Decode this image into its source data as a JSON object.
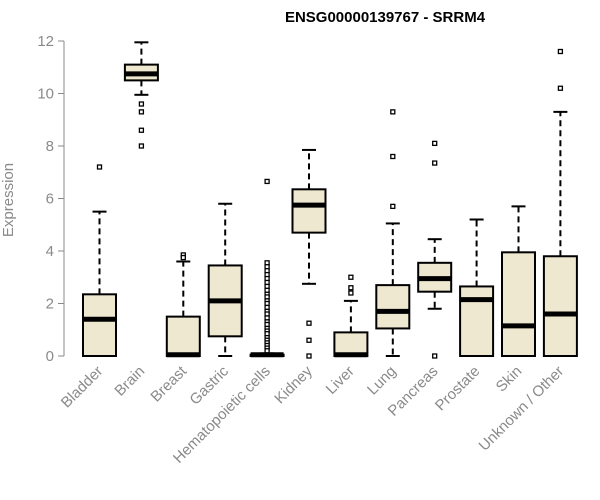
{
  "chart_data": {
    "type": "boxplot",
    "title": "ENSG00000139767 - SRRM4",
    "xlabel": "",
    "ylabel": "Expression",
    "ylim": [
      0,
      12
    ],
    "yticks": [
      "0",
      "2",
      "4",
      "6",
      "8",
      "10",
      "12"
    ],
    "box_fill": "#efe8d0",
    "box_stroke": "#000000",
    "categories": [
      "Bladder",
      "Brain",
      "Breast",
      "Gastric",
      "Hematopoietic cells",
      "Kidney",
      "Liver",
      "Lung",
      "Pancreas",
      "Prostate",
      "Skin",
      "Unknown / Other"
    ],
    "boxes": [
      {
        "label": "Bladder",
        "whisker_low": 0,
        "q1": 0,
        "median": 1.4,
        "q3": 2.35,
        "whisker_high": 5.5,
        "outliers": [
          7.2
        ]
      },
      {
        "label": "Brain",
        "whisker_low": 9.95,
        "q1": 10.5,
        "median": 10.75,
        "q3": 11.1,
        "whisker_high": 11.95,
        "outliers": [
          9.6,
          9.3,
          8.6,
          8.0
        ]
      },
      {
        "label": "Breast",
        "whisker_low": 0,
        "q1": 0,
        "median": 0.05,
        "q3": 1.5,
        "whisker_high": 3.6,
        "outliers": [
          3.85,
          3.75
        ]
      },
      {
        "label": "Gastric",
        "whisker_low": 0,
        "q1": 0.75,
        "median": 2.1,
        "q3": 3.45,
        "whisker_high": 5.8,
        "outliers": []
      },
      {
        "label": "Hematopoietic cells",
        "whisker_low": 0,
        "q1": 0,
        "median": 0.05,
        "q3": 0.05,
        "whisker_high": 0.1,
        "outliers": [
          6.65,
          3.55,
          3.4,
          3.25,
          3.1,
          2.95,
          2.8,
          2.65,
          2.5,
          2.35,
          2.25,
          2.1,
          2.0,
          1.85,
          1.7,
          1.6,
          1.45,
          1.3,
          1.2,
          1.05,
          0.95,
          0.85,
          0.7,
          0.6,
          0.5,
          0.4,
          0.3,
          0.2
        ]
      },
      {
        "label": "Kidney",
        "whisker_low": 2.75,
        "q1": 4.7,
        "median": 5.75,
        "q3": 6.35,
        "whisker_high": 7.85,
        "outliers": [
          1.25,
          0.6,
          0.0
        ]
      },
      {
        "label": "Liver",
        "whisker_low": 0,
        "q1": 0,
        "median": 0.05,
        "q3": 0.9,
        "whisker_high": 2.1,
        "outliers": [
          3.0,
          2.6,
          2.4
        ]
      },
      {
        "label": "Lung",
        "whisker_low": 0,
        "q1": 1.05,
        "median": 1.7,
        "q3": 2.7,
        "whisker_high": 5.05,
        "outliers": [
          9.3,
          7.6,
          5.7
        ]
      },
      {
        "label": "Pancreas",
        "whisker_low": 1.8,
        "q1": 2.45,
        "median": 2.95,
        "q3": 3.55,
        "whisker_high": 4.45,
        "outliers": [
          8.1,
          7.35,
          0.0
        ]
      },
      {
        "label": "Prostate",
        "whisker_low": 0,
        "q1": 0,
        "median": 2.15,
        "q3": 2.65,
        "whisker_high": 5.2,
        "outliers": []
      },
      {
        "label": "Skin",
        "whisker_low": 0,
        "q1": 0,
        "median": 1.15,
        "q3": 3.95,
        "whisker_high": 5.7,
        "outliers": []
      },
      {
        "label": "Unknown / Other",
        "whisker_low": 0,
        "q1": 0,
        "median": 1.6,
        "q3": 3.8,
        "whisker_high": 9.3,
        "outliers": [
          11.6,
          10.2
        ]
      }
    ]
  }
}
